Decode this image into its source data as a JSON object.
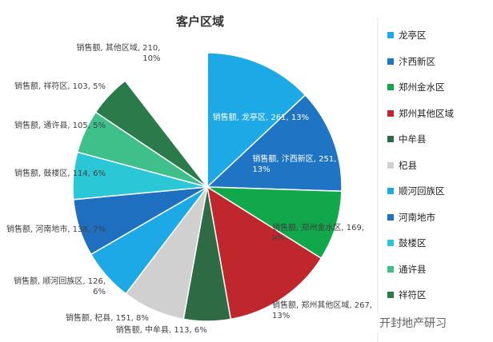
{
  "chart_data": {
    "type": "pie",
    "title": "客户区域",
    "series_name": "销售额",
    "categories": [
      "龙亭区",
      "汴西新区",
      "郑州金水区",
      "郑州其他区域",
      "中牟县",
      "杞县",
      "顺河回族区",
      "河南地市",
      "鼓楼区",
      "通许县",
      "祥符区",
      "其他区域"
    ],
    "values": [
      261,
      251,
      169,
      267,
      113,
      151,
      126,
      138,
      114,
      105,
      103,
      210
    ],
    "value_labels": [
      "销售额, 龙亭区, 261, 13%",
      "销售额, 汴西新区, 251, 13%",
      "销售额, 郑州金水区, 169, 8%",
      "销售额, 郑州其他区域, 267, 13%",
      "销售额, 中牟县, 113, 6%",
      "销售额, 杞县, 151, 8%",
      "销售额, 顺河回族区, 126, 6%",
      "销售额, 河南地市, 138, 7%",
      "销售额, 鼓楼区, 114, 6%",
      "销售额, 通许县, 105, 5%",
      "销售额, 祥符区, 103, 5%",
      "销售额, 其他区域, 210, 10%"
    ],
    "colors": [
      "#1ca9e6",
      "#1f74c4",
      "#10a84a",
      "#c0272d",
      "#2e6b45",
      "#d0d0d0",
      "#1ca9e6",
      "#1f6fc0",
      "#2ac7d6",
      "#3fbf8a",
      "#2a7a4a",
      "#ffffff"
    ],
    "legend": "right"
  },
  "watermark": "开封地产研习"
}
